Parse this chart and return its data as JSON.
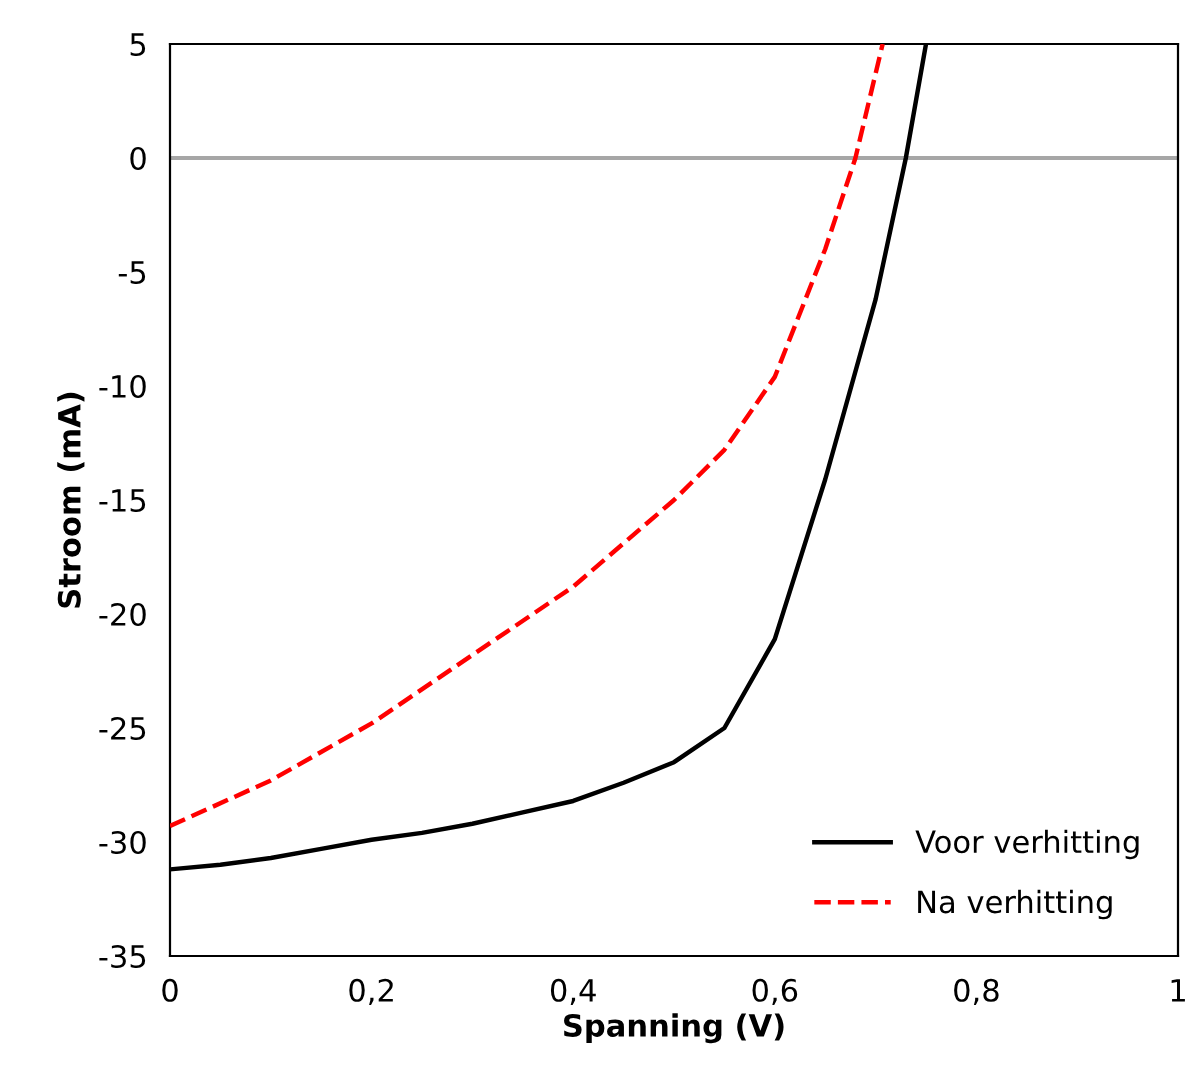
{
  "chart_data": {
    "type": "line",
    "xlabel": "Spanning (V)",
    "ylabel": "Stroom (mA)",
    "xlim": [
      0,
      1
    ],
    "xticks": [
      {
        "value": 0,
        "label": "0"
      },
      {
        "value": 0.2,
        "label": "0,2"
      },
      {
        "value": 0.4,
        "label": "0,4"
      },
      {
        "value": 0.6,
        "label": "0,6"
      },
      {
        "value": 0.8,
        "label": "0,8"
      },
      {
        "value": 1,
        "label": "1"
      }
    ],
    "ylim": [
      -35,
      5
    ],
    "yticks": [
      -35,
      -30,
      -25,
      -20,
      -15,
      -10,
      -5,
      0,
      5
    ],
    "grid": false,
    "legend": "bottom right",
    "marker": "none",
    "ref_lines": [
      {
        "axis": "y",
        "value": 0,
        "color": "#a6a6a6"
      }
    ],
    "series": [
      {
        "name": "Voor verhitting",
        "color": "#000000",
        "line_style": "solid",
        "x": [
          0,
          0.05,
          0.1,
          0.15,
          0.2,
          0.25,
          0.3,
          0.35,
          0.4,
          0.45,
          0.5,
          0.55,
          0.6,
          0.65,
          0.7,
          0.73,
          0.75
        ],
        "values": [
          -31.2,
          -31.0,
          -30.7,
          -30.3,
          -29.9,
          -29.6,
          -29.2,
          -28.7,
          -28.2,
          -27.4,
          -26.5,
          -25.0,
          -21.1,
          -14.1,
          -6.2,
          0,
          5
        ]
      },
      {
        "name": "Na verhitting",
        "color": "#ff0000",
        "line_style": "dashed",
        "x": [
          0,
          0.1,
          0.2,
          0.3,
          0.4,
          0.5,
          0.55,
          0.6,
          0.65,
          0.68,
          0.707
        ],
        "values": [
          -29.3,
          -27.3,
          -24.8,
          -21.8,
          -18.8,
          -15.0,
          -12.8,
          -9.6,
          -4.0,
          0,
          5
        ]
      }
    ]
  }
}
